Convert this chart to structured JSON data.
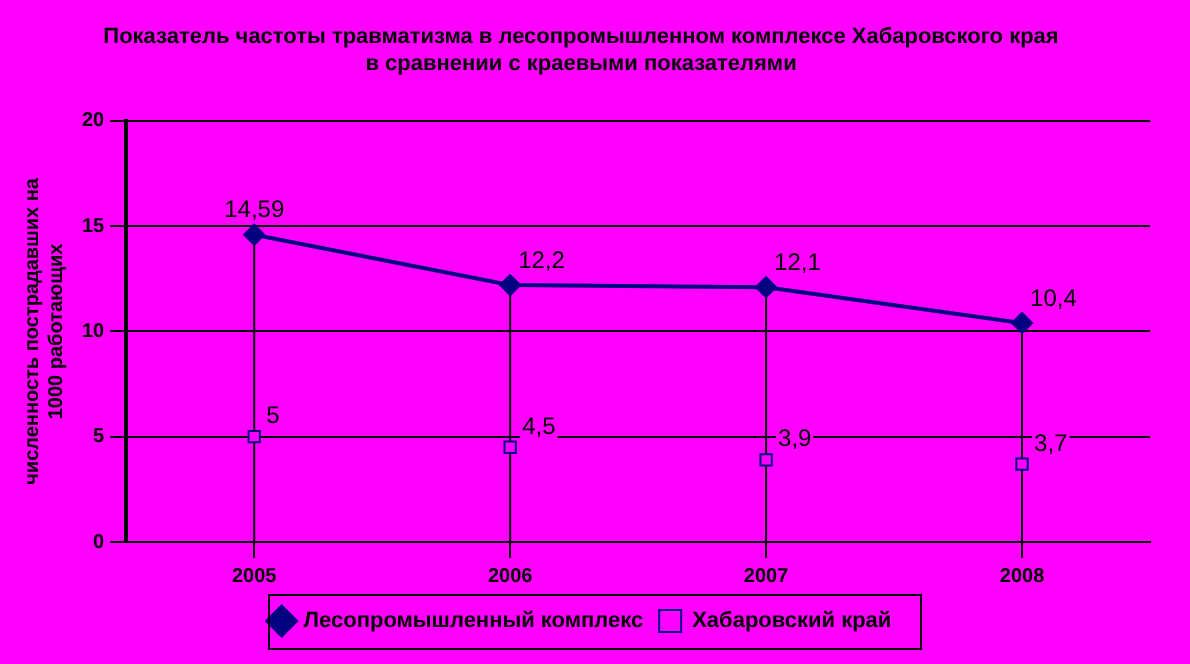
{
  "chart_data": {
    "type": "line",
    "title": "Показатель частоты травматизма в лесопромышленном комплексе Хабаровского края в сравнении с краевыми показателями",
    "ylabel": "численность пострадавших на 1000 работающих",
    "categories": [
      "2005",
      "2006",
      "2007",
      "2008"
    ],
    "series": [
      {
        "name": "Лесопромышленный комплекс",
        "color": "#000080",
        "marker": "diamond",
        "values": [
          14.59,
          12.2,
          12.1,
          10.4
        ],
        "value_labels": [
          "14,59",
          "12,2",
          "12,1",
          "10,4"
        ]
      },
      {
        "name": "Хабаровский край",
        "type": "scatter",
        "color": "#000080",
        "marker": "square",
        "values": [
          5,
          4.5,
          3.9,
          3.7
        ],
        "value_labels": [
          "5",
          "4,5",
          "3,9",
          "3,7"
        ]
      }
    ],
    "ylim": [
      0,
      20
    ],
    "yticks": [
      0,
      5,
      10,
      15,
      20
    ],
    "grid": true,
    "legend": "bottom"
  }
}
